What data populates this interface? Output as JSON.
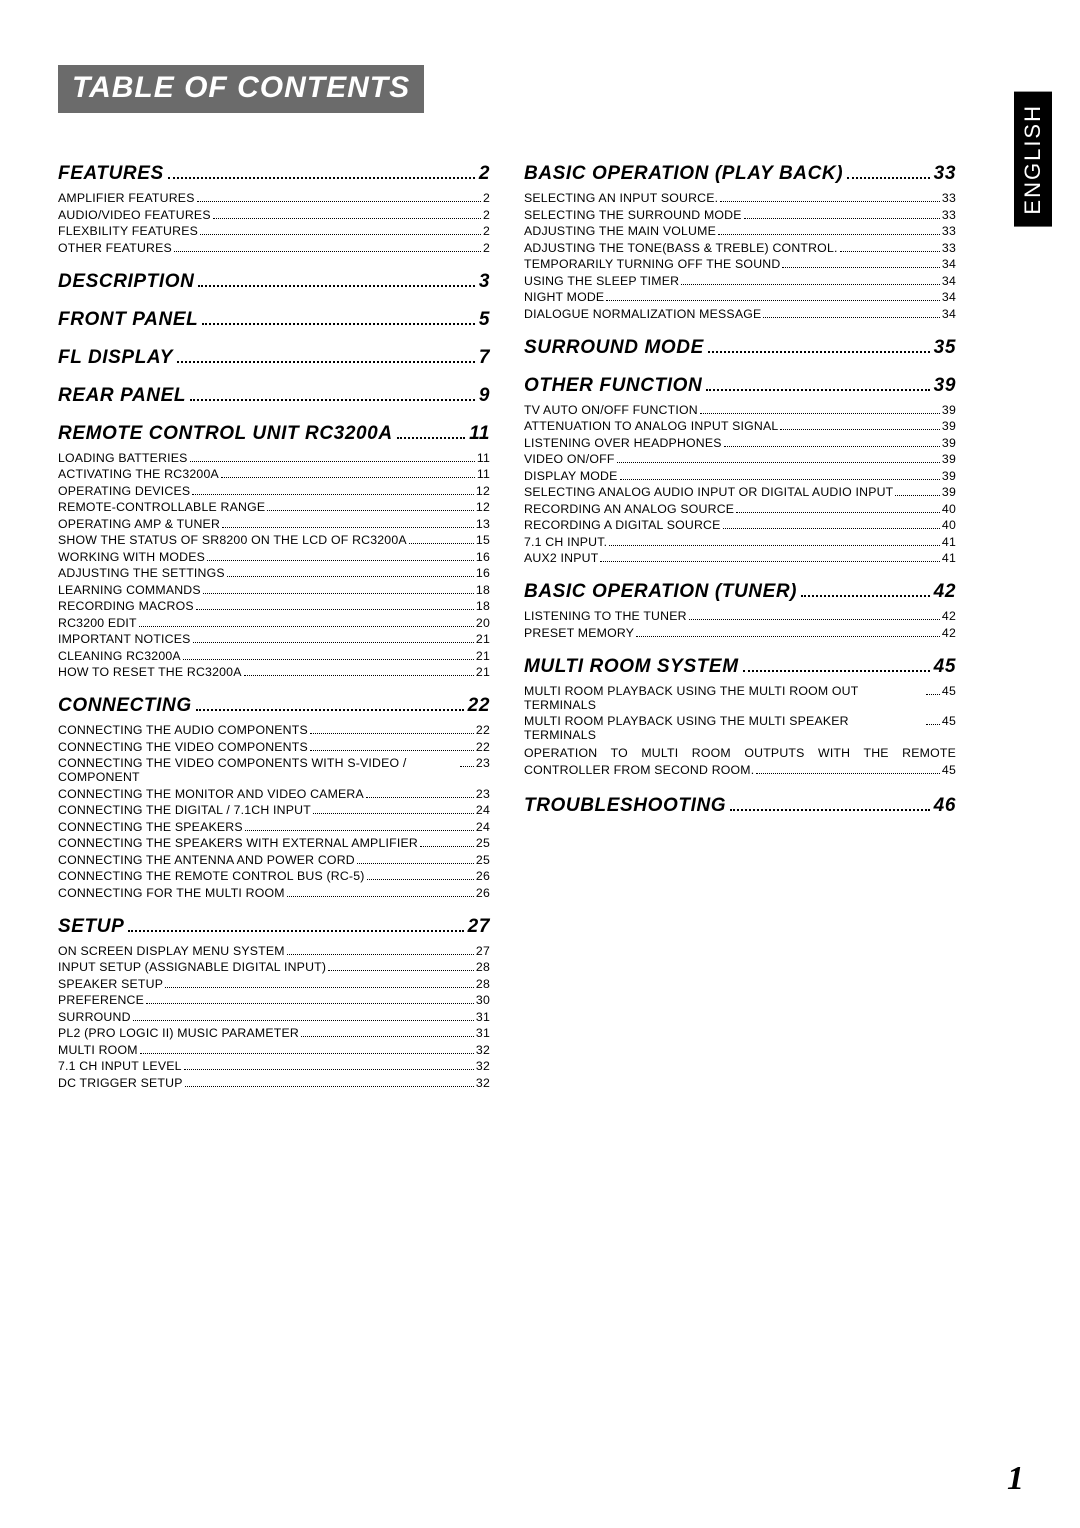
{
  "title": "TABLE OF CONTENTS",
  "language_tab": "ENGLISH",
  "page_number": "1",
  "colors": {
    "title_band_bg": "#6b6b6b",
    "title_band_fg": "#ffffff",
    "lang_tab_bg": "#000000",
    "lang_tab_fg": "#ffffff",
    "text": "#000000",
    "page_bg": "#ffffff"
  },
  "typography": {
    "title_fontsize": 30,
    "heading_fontsize": 19,
    "entry_fontsize": 12.3,
    "page_num_fontsize": 34,
    "lang_tab_fontsize": 22
  },
  "left_column": [
    {
      "heading": "FEATURES",
      "page": "2",
      "entries": [
        {
          "label": "AMPLIFIER FEATURES",
          "page": "2"
        },
        {
          "label": "AUDIO/VIDEO FEATURES",
          "page": "2"
        },
        {
          "label": "FLEXBILITY FEATURES",
          "page": "2"
        },
        {
          "label": "OTHER FEATURES",
          "page": "2"
        }
      ]
    },
    {
      "heading": "DESCRIPTION",
      "page": "3",
      "entries": []
    },
    {
      "heading": "FRONT PANEL",
      "page": "5",
      "entries": []
    },
    {
      "heading": "FL DISPLAY",
      "page": "7",
      "entries": []
    },
    {
      "heading": "REAR PANEL",
      "page": "9",
      "entries": []
    },
    {
      "heading": "REMOTE CONTROL UNIT RC3200A",
      "page": "11",
      "entries": [
        {
          "label": "LOADING BATTERIES",
          "page": "11"
        },
        {
          "label": "ACTIVATING THE RC3200A",
          "page": "11"
        },
        {
          "label": "OPERATING DEVICES",
          "page": "12"
        },
        {
          "label": "REMOTE-CONTROLLABLE RANGE",
          "page": "12"
        },
        {
          "label": "OPERATING AMP & TUNER",
          "page": "13"
        },
        {
          "label": "SHOW THE STATUS OF SR8200 ON THE LCD OF RC3200A",
          "page": "15"
        },
        {
          "label": "WORKING WITH MODES",
          "page": "16"
        },
        {
          "label": "ADJUSTING THE SETTINGS",
          "page": "16"
        },
        {
          "label": "LEARNING COMMANDS",
          "page": "18"
        },
        {
          "label": "RECORDING MACROS",
          "page": "18"
        },
        {
          "label": "RC3200 EDIT",
          "page": "20"
        },
        {
          "label": "IMPORTANT NOTICES",
          "page": "21"
        },
        {
          "label": "CLEANING RC3200A",
          "page": "21"
        },
        {
          "label": "HOW TO RESET THE RC3200A",
          "page": "21"
        }
      ]
    },
    {
      "heading": "CONNECTING",
      "page": "22",
      "entries": [
        {
          "label": "CONNECTING THE AUDIO COMPONENTS",
          "page": "22"
        },
        {
          "label": "CONNECTING THE VIDEO COMPONENTS",
          "page": "22"
        },
        {
          "label": "CONNECTING THE VIDEO COMPONENTS WITH S-VIDEO / COMPONENT",
          "page": "23"
        },
        {
          "label": "CONNECTING THE MONITOR AND VIDEO CAMERA",
          "page": "23"
        },
        {
          "label": "CONNECTING THE DIGITAL / 7.1CH INPUT",
          "page": "24"
        },
        {
          "label": "CONNECTING THE SPEAKERS",
          "page": "24"
        },
        {
          "label": "CONNECTING THE SPEAKERS WITH EXTERNAL AMPLIFIER",
          "page": "25"
        },
        {
          "label": "CONNECTING THE ANTENNA AND POWER CORD",
          "page": "25"
        },
        {
          "label": "CONNECTING THE REMOTE CONTROL BUS (RC-5)",
          "page": "26"
        },
        {
          "label": "CONNECTING FOR THE MULTI ROOM",
          "page": "26"
        }
      ]
    },
    {
      "heading": "SETUP",
      "page": "27",
      "entries": [
        {
          "label": "ON SCREEN DISPLAY MENU SYSTEM",
          "page": "27"
        },
        {
          "label": "INPUT SETUP (ASSIGNABLE DIGITAL INPUT)",
          "page": "28"
        },
        {
          "label": "SPEAKER SETUP",
          "page": "28"
        },
        {
          "label": "PREFERENCE",
          "page": "30"
        },
        {
          "label": "SURROUND",
          "page": "31"
        },
        {
          "label": "PL2 (PRO LOGIC II) MUSIC PARAMETER",
          "page": "31"
        },
        {
          "label": "MULTI ROOM",
          "page": "32"
        },
        {
          "label": "7.1 CH INPUT LEVEL",
          "page": "32"
        },
        {
          "label": "DC TRIGGER SETUP",
          "page": "32"
        }
      ]
    }
  ],
  "right_column": [
    {
      "heading": "BASIC OPERATION (PLAY BACK)",
      "page": "33",
      "entries": [
        {
          "label": "SELECTING AN INPUT SOURCE.",
          "page": "33"
        },
        {
          "label": "SELECTING THE SURROUND MODE",
          "page": "33"
        },
        {
          "label": "ADJUSTING THE MAIN VOLUME",
          "page": "33"
        },
        {
          "label": "ADJUSTING THE TONE(BASS & TREBLE) CONTROL.",
          "page": "33"
        },
        {
          "label": "TEMPORARILY TURNING OFF THE SOUND",
          "page": "34"
        },
        {
          "label": "USING THE SLEEP TIMER",
          "page": "34"
        },
        {
          "label": "NIGHT MODE",
          "page": "34"
        },
        {
          "label": "DIALOGUE NORMALIZATION MESSAGE",
          "page": "34"
        }
      ]
    },
    {
      "heading": "SURROUND MODE",
      "page": "35",
      "entries": []
    },
    {
      "heading": "OTHER FUNCTION",
      "page": "39",
      "entries": [
        {
          "label": "TV AUTO ON/OFF FUNCTION",
          "page": "39"
        },
        {
          "label": "ATTENUATION TO ANALOG INPUT SIGNAL",
          "page": "39"
        },
        {
          "label": "LISTENING OVER HEADPHONES",
          "page": "39"
        },
        {
          "label": "VIDEO ON/OFF",
          "page": "39"
        },
        {
          "label": "DISPLAY MODE",
          "page": "39"
        },
        {
          "label": "SELECTING ANALOG AUDIO INPUT OR DIGITAL AUDIO INPUT",
          "page": "39"
        },
        {
          "label": "RECORDING AN ANALOG SOURCE",
          "page": "40"
        },
        {
          "label": "RECORDING A DIGITAL SOURCE",
          "page": "40"
        },
        {
          "label": "7.1 CH INPUT.",
          "page": "41"
        },
        {
          "label": "AUX2 INPUT",
          "page": "41"
        }
      ]
    },
    {
      "heading": "BASIC OPERATION (TUNER)",
      "page": "42",
      "entries": [
        {
          "label": "LISTENING TO THE TUNER",
          "page": "42"
        },
        {
          "label": "PRESET MEMORY",
          "page": "42"
        }
      ]
    },
    {
      "heading": "MULTI ROOM SYSTEM",
      "page": "45",
      "entries": [
        {
          "label": "MULTI ROOM PLAYBACK USING THE MULTI ROOM OUT TERMINALS",
          "page": "45"
        },
        {
          "label": "MULTI ROOM PLAYBACK USING THE MULTI SPEAKER TERMINALS",
          "page": "45"
        },
        {
          "label_lines": [
            "OPERATION TO MULTI ROOM OUTPUTS WITH THE REMOTE",
            "CONTROLLER FROM SECOND ROOM."
          ],
          "page": "45",
          "wrap": true
        }
      ]
    },
    {
      "heading": "TROUBLESHOOTING",
      "page": "46",
      "entries": []
    }
  ]
}
